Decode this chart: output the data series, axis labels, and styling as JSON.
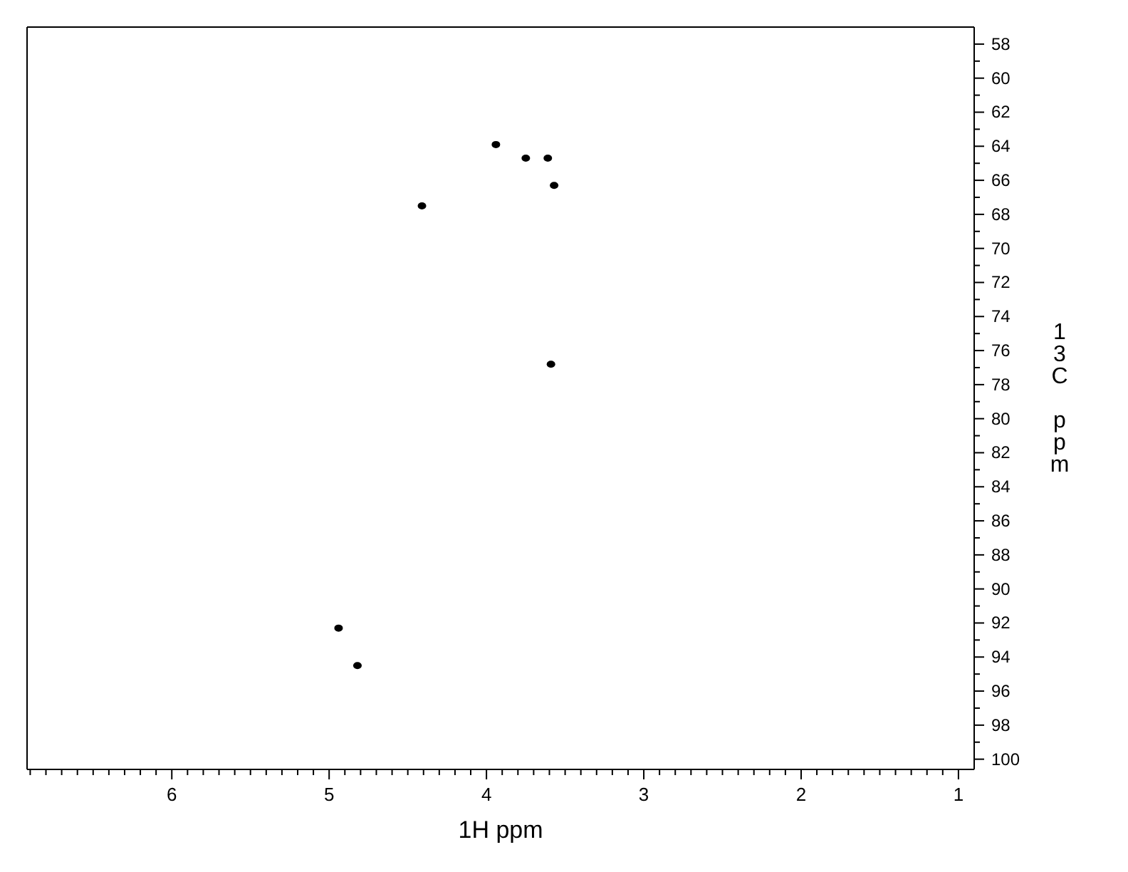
{
  "chart_data": {
    "type": "scatter",
    "xlabel": "1H ppm",
    "ylabel": "13C ppm",
    "x": [
      3.94,
      3.75,
      3.61,
      3.57,
      4.41,
      3.59,
      4.94,
      4.82
    ],
    "values": [
      63.9,
      64.7,
      64.7,
      66.3,
      67.5,
      76.8,
      92.3,
      94.5
    ],
    "color": "#000000",
    "marker": "circle",
    "legend": false,
    "xlim": [
      6.92,
      0.9
    ],
    "ylim": [
      100.6,
      57
    ],
    "xticks": [
      1,
      {
        "value": 1.1,
        "label": null
      },
      {
        "value": 1.2,
        "label": null
      },
      {
        "value": 1.3,
        "label": null
      },
      {
        "value": 1.4,
        "label": null
      },
      {
        "value": 1.5,
        "label": null
      },
      {
        "value": 1.6,
        "label": null
      },
      {
        "value": 1.7,
        "label": null
      },
      {
        "value": 1.8,
        "label": null
      },
      {
        "value": 1.9,
        "label": null
      },
      2,
      {
        "value": 2.1,
        "label": null
      },
      {
        "value": 2.2,
        "label": null
      },
      {
        "value": 2.3,
        "label": null
      },
      {
        "value": 2.4,
        "label": null
      },
      {
        "value": 2.5,
        "label": null
      },
      {
        "value": 2.6,
        "label": null
      },
      {
        "value": 2.7,
        "label": null
      },
      {
        "value": 2.8,
        "label": null
      },
      {
        "value": 2.9,
        "label": null
      },
      3,
      {
        "value": 3.1,
        "label": null
      },
      {
        "value": 3.2,
        "label": null
      },
      {
        "value": 3.3,
        "label": null
      },
      {
        "value": 3.4,
        "label": null
      },
      {
        "value": 3.5,
        "label": null
      },
      {
        "value": 3.6,
        "label": null
      },
      {
        "value": 3.7,
        "label": null
      },
      {
        "value": 3.8,
        "label": null
      },
      {
        "value": 3.9,
        "label": null
      },
      4,
      {
        "value": 4.1,
        "label": null
      },
      {
        "value": 4.2,
        "label": null
      },
      {
        "value": 4.3,
        "label": null
      },
      {
        "value": 4.4,
        "label": null
      },
      {
        "value": 4.5,
        "label": null
      },
      {
        "value": 4.6,
        "label": null
      },
      {
        "value": 4.7,
        "label": null
      },
      {
        "value": 4.8,
        "label": null
      },
      {
        "value": 4.9,
        "label": null
      },
      5,
      {
        "value": 5.1,
        "label": null
      },
      {
        "value": 5.2,
        "label": null
      },
      {
        "value": 5.3,
        "label": null
      },
      {
        "value": 5.4,
        "label": null
      },
      {
        "value": 5.5,
        "label": null
      },
      {
        "value": 5.6,
        "label": null
      },
      {
        "value": 5.7,
        "label": null
      },
      {
        "value": 5.8,
        "label": null
      },
      {
        "value": 5.9,
        "label": null
      },
      6,
      {
        "value": 6.1,
        "label": null
      },
      {
        "value": 6.2,
        "label": null
      },
      {
        "value": 6.3,
        "label": null
      },
      {
        "value": 6.4,
        "label": null
      },
      {
        "value": 6.5,
        "label": null
      },
      {
        "value": 6.6,
        "label": null
      },
      {
        "value": 6.7,
        "label": null
      },
      {
        "value": 6.8,
        "label": null
      },
      {
        "value": 6.9,
        "label": null
      }
    ],
    "yticks": [
      58,
      {
        "value": 59,
        "label": null
      },
      60,
      {
        "value": 61,
        "label": null
      },
      62,
      {
        "value": 63,
        "label": null
      },
      64,
      {
        "value": 65,
        "label": null
      },
      66,
      {
        "value": 67,
        "label": null
      },
      68,
      {
        "value": 69,
        "label": null
      },
      70,
      {
        "value": 71,
        "label": null
      },
      72,
      {
        "value": 73,
        "label": null
      },
      74,
      {
        "value": 75,
        "label": null
      },
      76,
      {
        "value": 77,
        "label": null
      },
      78,
      {
        "value": 79,
        "label": null
      },
      80,
      {
        "value": 81,
        "label": null
      },
      82,
      {
        "value": 83,
        "label": null
      },
      84,
      {
        "value": 85,
        "label": null
      },
      86,
      {
        "value": 87,
        "label": null
      },
      88,
      {
        "value": 89,
        "label": null
      },
      90,
      {
        "value": 91,
        "label": null
      },
      92,
      {
        "value": 93,
        "label": null
      },
      94,
      {
        "value": 95,
        "label": null
      },
      96,
      {
        "value": 97,
        "label": null
      },
      98,
      {
        "value": 99,
        "label": null
      },
      100
    ]
  }
}
